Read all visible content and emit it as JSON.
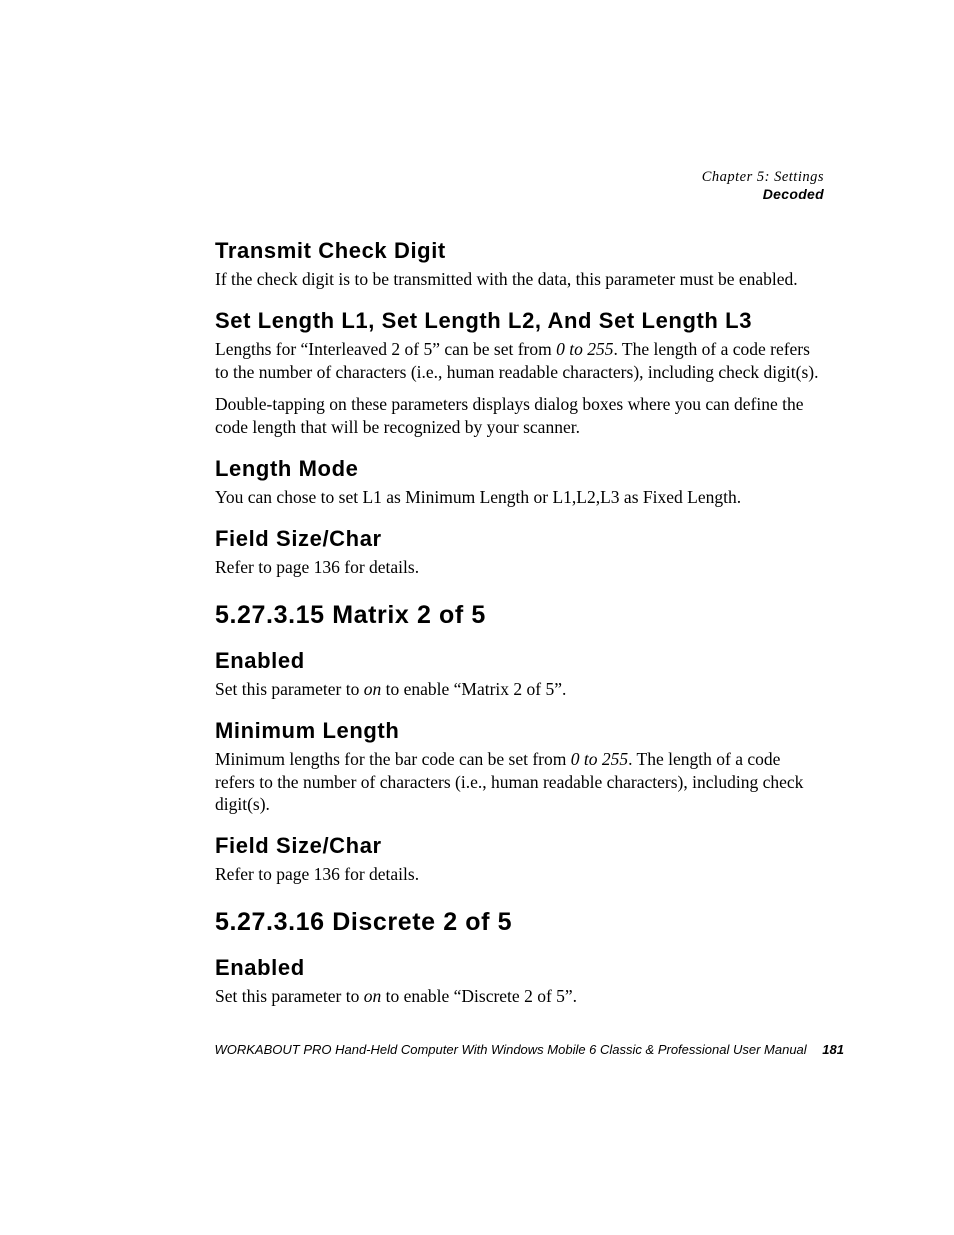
{
  "header": {
    "chapter": "Chapter 5: Settings",
    "section": "Decoded"
  },
  "blocks": [
    {
      "type": "sub",
      "text": "Transmit Check Digit"
    },
    {
      "type": "p",
      "text": "If the check digit is to be transmitted with the data, this parameter must be enabled."
    },
    {
      "type": "sub",
      "text": "Set Length L1, Set Length L2, And Set Length L3"
    },
    {
      "type": "p",
      "runs": [
        {
          "t": "Lengths for “Interleaved 2 of 5” can be set from "
        },
        {
          "t": "0 to 255",
          "i": true
        },
        {
          "t": ". The length of a code refers to the number of characters (i.e., human readable characters), including check digit(s)."
        }
      ]
    },
    {
      "type": "p",
      "text": "Double-tapping on these parameters displays dialog boxes where you can define the code length that will be recognized by your scanner."
    },
    {
      "type": "sub",
      "text": "Length Mode"
    },
    {
      "type": "p",
      "text": "You can chose to set L1 as Minimum Length or L1,L2,L3 as Fixed Length."
    },
    {
      "type": "sub",
      "text": "Field Size/Char"
    },
    {
      "type": "p",
      "text": "Refer to page 136 for details."
    },
    {
      "type": "section",
      "text": "5.27.3.15  Matrix 2 of 5"
    },
    {
      "type": "sub",
      "text": "Enabled"
    },
    {
      "type": "p",
      "runs": [
        {
          "t": "Set this parameter to "
        },
        {
          "t": "on",
          "i": true
        },
        {
          "t": " to enable “Matrix 2 of 5”."
        }
      ]
    },
    {
      "type": "sub",
      "text": "Minimum Length"
    },
    {
      "type": "p",
      "runs": [
        {
          "t": "Minimum lengths for the bar code can be set from "
        },
        {
          "t": "0 to 255",
          "i": true
        },
        {
          "t": ". The length of a code refers to the number of characters (i.e., human readable characters), including check digit(s)."
        }
      ]
    },
    {
      "type": "sub",
      "text": "Field Size/Char"
    },
    {
      "type": "p",
      "text": "Refer to page 136 for details."
    },
    {
      "type": "section",
      "text": "5.27.3.16  Discrete 2 of 5"
    },
    {
      "type": "sub",
      "text": "Enabled"
    },
    {
      "type": "p",
      "runs": [
        {
          "t": "Set this parameter to "
        },
        {
          "t": "on",
          "i": true
        },
        {
          "t": " to enable “Discrete 2 of 5”."
        }
      ]
    }
  ],
  "footer": {
    "text": "WORKABOUT PRO Hand-Held Computer With Windows Mobile 6 Classic & Professional User Manual",
    "page": "181"
  }
}
